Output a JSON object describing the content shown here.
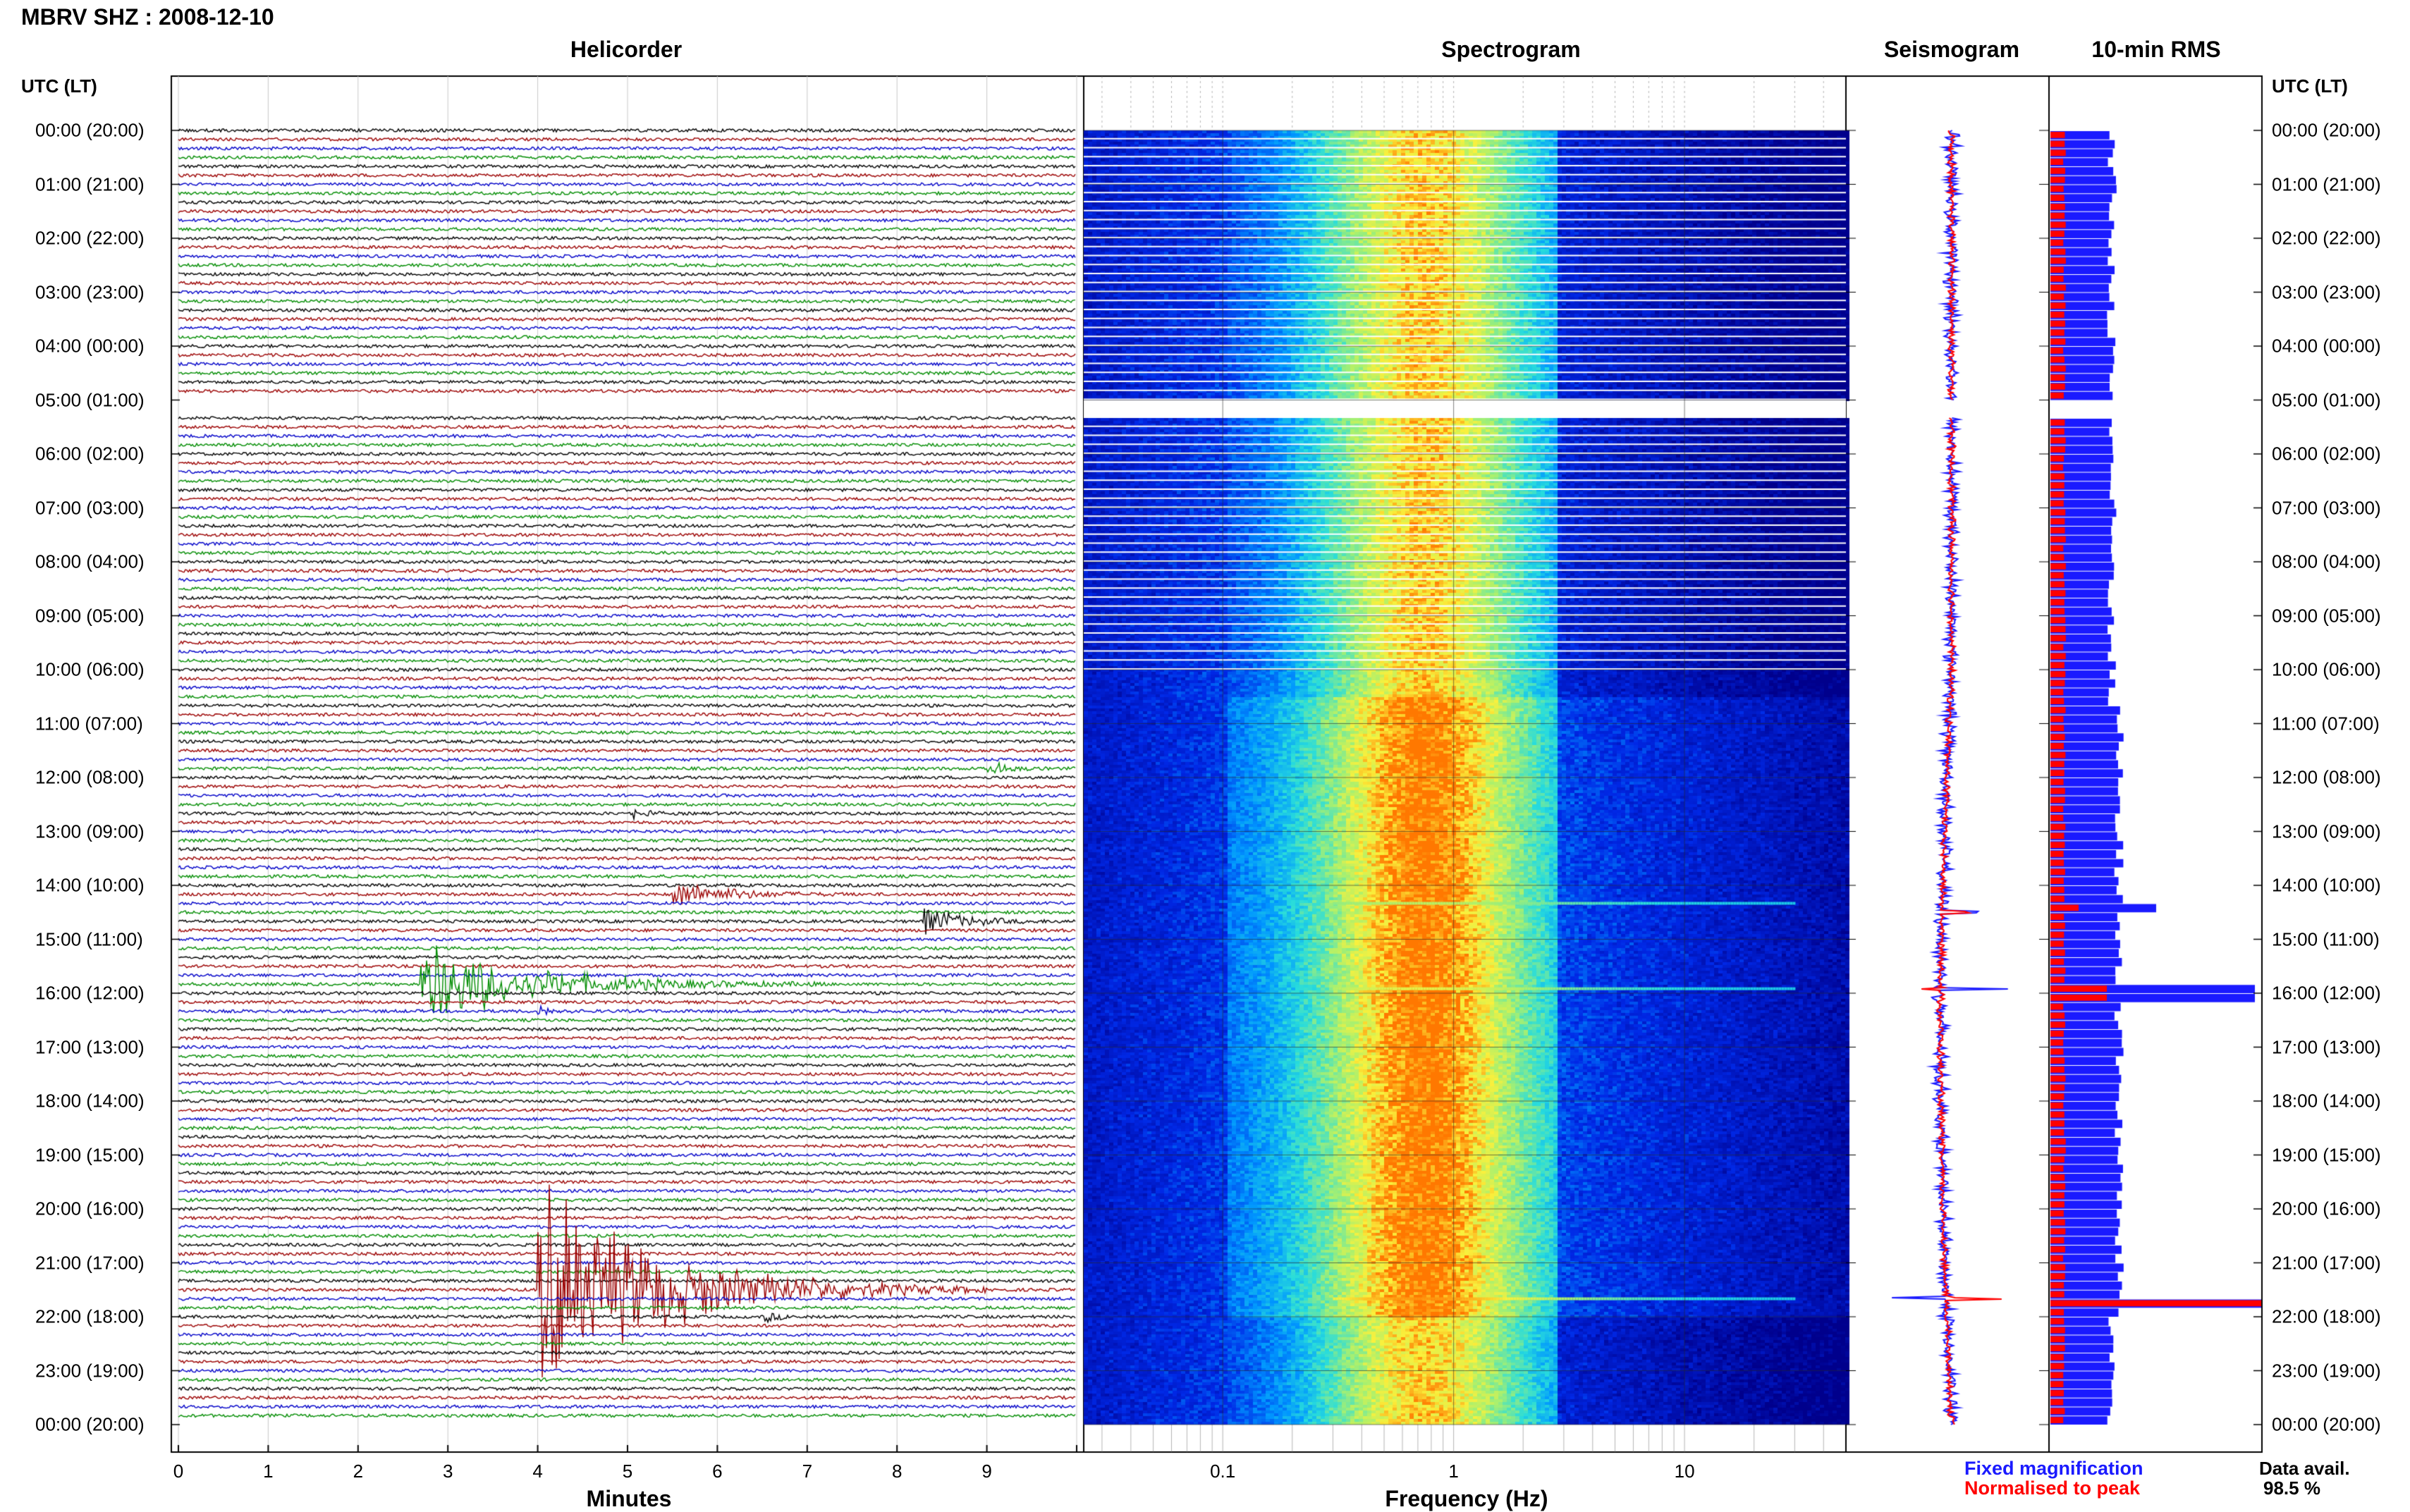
{
  "header": {
    "title": "MBRV SHZ : 2008-12-10"
  },
  "panels": {
    "helicorder": "Helicorder",
    "spectrogram": "Spectrogram",
    "seismogram": "Seismogram",
    "rms": "10-min RMS"
  },
  "axes": {
    "time_header_left": "UTC (LT)",
    "time_header_right": "UTC (LT)",
    "helicorder_xlabel": "Minutes",
    "spectrogram_xlabel": "Frequency (Hz)",
    "time_labels": [
      "00:00 (20:00)",
      "01:00 (21:00)",
      "02:00 (22:00)",
      "03:00 (23:00)",
      "04:00 (00:00)",
      "05:00 (01:00)",
      "06:00 (02:00)",
      "07:00 (03:00)",
      "08:00 (04:00)",
      "09:00 (05:00)",
      "10:00 (06:00)",
      "11:00 (07:00)",
      "12:00 (08:00)",
      "13:00 (09:00)",
      "14:00 (10:00)",
      "15:00 (11:00)",
      "16:00 (12:00)",
      "17:00 (13:00)",
      "18:00 (14:00)",
      "19:00 (15:00)",
      "20:00 (16:00)",
      "21:00 (17:00)",
      "22:00 (18:00)",
      "23:00 (19:00)",
      "00:00 (20:00)"
    ],
    "minute_ticks": [
      "0",
      "1",
      "2",
      "3",
      "4",
      "5",
      "6",
      "7",
      "8",
      "9"
    ],
    "frequency_ticks": [
      "0.1",
      "1",
      "10"
    ]
  },
  "legend": {
    "fixed": "Fixed magnification",
    "normalised": "Normalised to peak",
    "fixed_color": "#1a1aff",
    "normalised_color": "#ff0000"
  },
  "availability": {
    "label": "Data avail.",
    "value": "98.5 %"
  },
  "colors": {
    "trace_cycle": [
      "#000000",
      "#9b0000",
      "#0000c8",
      "#008c00"
    ],
    "rms_fixed": "#1a1aff",
    "rms_normalised": "#ff0000"
  },
  "chart_data": {
    "type": "heatmap",
    "station": "MBRV SHZ",
    "date": "2008-12-10",
    "time_axis_utc_hours": [
      0,
      24
    ],
    "helicorder": {
      "type": "line",
      "xlabel": "Minutes",
      "xlim": [
        0,
        10
      ],
      "rows_per_hour": 6,
      "gap_utc": [
        "05:00",
        "05:20"
      ],
      "events": [
        {
          "utc": "15:50",
          "minute": 2.7,
          "amplitude": 4.2,
          "duration_min": 4.5
        },
        {
          "utc": "21:30",
          "minute": 4.0,
          "amplitude": 11.0,
          "duration_min": 5.0
        },
        {
          "utc": "14:10",
          "minute": 5.5,
          "amplitude": 1.6,
          "duration_min": 2.0
        },
        {
          "utc": "14:40",
          "minute": 8.3,
          "amplitude": 1.5,
          "duration_min": 1.5
        },
        {
          "utc": "12:40",
          "minute": 5.0,
          "amplitude": 1.0,
          "duration_min": 0.5
        },
        {
          "utc": "11:50",
          "minute": 9.0,
          "amplitude": 1.0,
          "duration_min": 0.7
        },
        {
          "utc": "16:20",
          "minute": 4.0,
          "amplitude": 0.8,
          "duration_min": 0.5
        },
        {
          "utc": "22:00",
          "minute": 6.5,
          "amplitude": 0.8,
          "duration_min": 0.5
        }
      ]
    },
    "spectrogram": {
      "xlabel": "Frequency (Hz)",
      "xscale": "log",
      "xlim": [
        0.025,
        50
      ],
      "peak_band_hz": [
        0.3,
        1.8
      ]
    },
    "seismogram": {
      "legend": [
        "Fixed magnification",
        "Normalised to peak"
      ],
      "spikes_utc": [
        "14:30",
        "15:55",
        "21:40"
      ]
    },
    "rms": {
      "type": "bar",
      "interval": "10-min",
      "series": [
        {
          "name": "Fixed magnification"
        },
        {
          "name": "Normalised to peak"
        }
      ],
      "peaks_utc": [
        "14:20",
        "15:55",
        "21:40"
      ]
    },
    "data_availability_percent": 98.5
  }
}
